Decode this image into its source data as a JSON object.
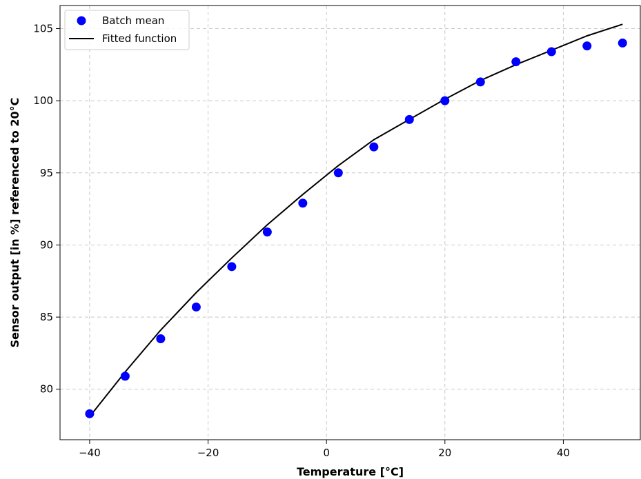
{
  "chart_data": {
    "type": "scatter",
    "xlabel": "Temperature [°C]",
    "ylabel": "Sensor output [in %] referenced to 20°C",
    "xlim": [
      -45,
      53
    ],
    "ylim": [
      76.5,
      106.6
    ],
    "xticks": [
      -40,
      -20,
      0,
      20,
      40
    ],
    "yticks": [
      80,
      85,
      90,
      95,
      100,
      105
    ],
    "xtick_labels": [
      "−40",
      "−20",
      "0",
      "20",
      "40"
    ],
    "ytick_labels": [
      "80",
      "85",
      "90",
      "95",
      "100",
      "105"
    ],
    "grid": true,
    "legend_position": "top-left",
    "series": [
      {
        "name": "Batch mean",
        "kind": "scatter",
        "color": "#0000ff",
        "x": [
          -40,
          -34,
          -28,
          -22,
          -16,
          -10,
          -4,
          2,
          8,
          14,
          20,
          26,
          32,
          38,
          44,
          50
        ],
        "y": [
          78.3,
          80.9,
          83.5,
          85.7,
          88.5,
          90.9,
          92.9,
          95.0,
          96.8,
          98.7,
          100.0,
          101.3,
          102.7,
          103.4,
          103.8,
          104.0
        ]
      },
      {
        "name": "Fitted function",
        "kind": "line",
        "color": "#000000",
        "x": [
          -40,
          -34,
          -28,
          -22,
          -16,
          -10,
          -4,
          2,
          8,
          14,
          20,
          26,
          32,
          38,
          44,
          50
        ],
        "y": [
          78.1,
          81.2,
          84.1,
          86.7,
          89.1,
          91.4,
          93.5,
          95.5,
          97.3,
          98.7,
          100.1,
          101.4,
          102.5,
          103.5,
          104.5,
          105.3
        ]
      }
    ]
  }
}
